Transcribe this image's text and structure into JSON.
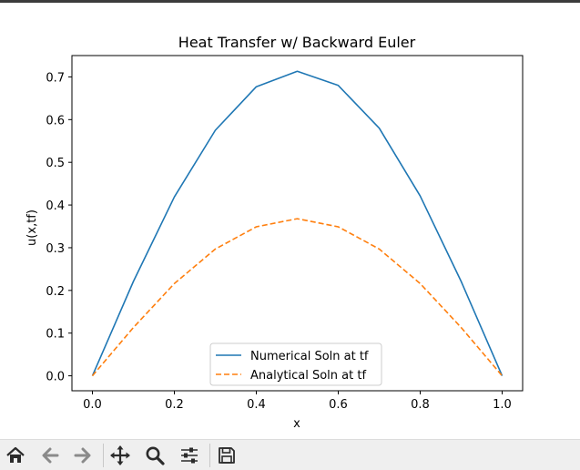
{
  "window": {
    "toolbar": {
      "buttons": [
        {
          "name": "home-button",
          "icon": "home-icon"
        },
        {
          "name": "back-button",
          "icon": "arrow-left-icon"
        },
        {
          "name": "forward-button",
          "icon": "arrow-right-icon"
        },
        {
          "name": "pan-button",
          "icon": "move-icon"
        },
        {
          "name": "zoom-button",
          "icon": "magnifier-icon"
        },
        {
          "name": "configure-subplots-button",
          "icon": "sliders-icon"
        },
        {
          "name": "save-button",
          "icon": "floppy-disk-icon"
        }
      ]
    }
  },
  "chart_data": {
    "type": "line",
    "title": "Heat Transfer w/ Backward Euler",
    "xlabel": "x",
    "ylabel": "u(x,tf)",
    "xlim": [
      -0.05,
      1.05
    ],
    "ylim": [
      -0.035,
      0.75
    ],
    "xticks": [
      "0.0",
      "0.2",
      "0.4",
      "0.6",
      "0.8",
      "1.0"
    ],
    "xtick_values": [
      0.0,
      0.2,
      0.4,
      0.6,
      0.8,
      1.0
    ],
    "yticks": [
      "0.0",
      "0.1",
      "0.2",
      "0.3",
      "0.4",
      "0.5",
      "0.6",
      "0.7"
    ],
    "ytick_values": [
      0.0,
      0.1,
      0.2,
      0.3,
      0.4,
      0.5,
      0.6,
      0.7
    ],
    "x": [
      0.0,
      0.1,
      0.2,
      0.3,
      0.4,
      0.5,
      0.6,
      0.7,
      0.8,
      0.9,
      1.0
    ],
    "series": [
      {
        "name": "Numerical Soln at tf",
        "style": "solid",
        "color": "#1f77b4",
        "values": [
          0.0,
          0.221,
          0.419,
          0.575,
          0.677,
          0.713,
          0.68,
          0.58,
          0.421,
          0.221,
          0.0
        ]
      },
      {
        "name": "Analytical Soln at tf",
        "style": "dashed",
        "color": "#ff7f0e",
        "values": [
          0.0,
          0.113,
          0.216,
          0.297,
          0.349,
          0.368,
          0.349,
          0.297,
          0.216,
          0.113,
          0.0
        ]
      }
    ],
    "legend_position": "lower-center",
    "grid": false
  }
}
